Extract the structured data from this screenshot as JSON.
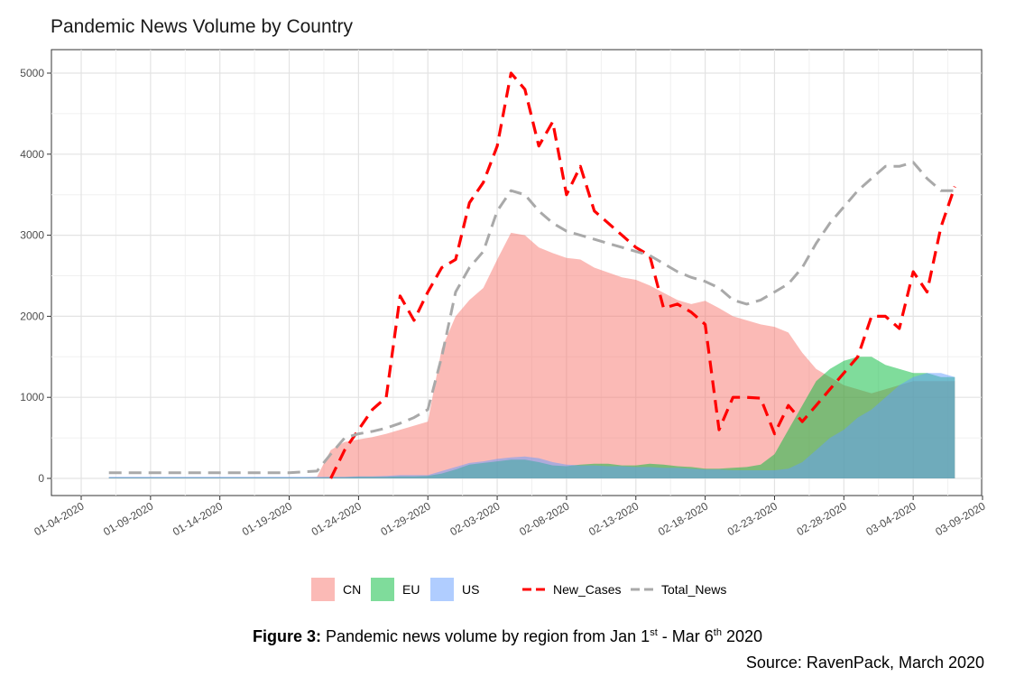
{
  "chart_data": {
    "type": "area",
    "title": "Pandemic News Volume by Country",
    "xlabel": "",
    "ylabel": "",
    "x_start": "2020-01-06",
    "x_step_days": 1,
    "x_ticks": [
      "01-04-2020",
      "01-09-2020",
      "01-14-2020",
      "01-19-2020",
      "01-24-2020",
      "01-29-2020",
      "02-03-2020",
      "02-08-2020",
      "02-13-2020",
      "02-18-2020",
      "02-23-2020",
      "02-28-2020",
      "03-04-2020",
      "03-09-2020"
    ],
    "y_ticks": [
      0,
      1000,
      2000,
      3000,
      4000,
      5000
    ],
    "ylim": [
      0,
      5000
    ],
    "grid": true,
    "legend_position": "bottom",
    "series": [
      {
        "name": "CN",
        "kind": "area",
        "color": "#F8766D",
        "values": [
          15,
          15,
          15,
          15,
          15,
          15,
          15,
          15,
          15,
          15,
          15,
          15,
          15,
          15,
          15,
          20,
          350,
          450,
          480,
          510,
          550,
          600,
          650,
          700,
          1600,
          2000,
          2200,
          2350,
          2700,
          3030,
          3000,
          2850,
          2780,
          2720,
          2700,
          2600,
          2540,
          2480,
          2450,
          2380,
          2290,
          2200,
          2150,
          2190,
          2100,
          2000,
          1950,
          1900,
          1870,
          1800,
          1550,
          1350,
          1250,
          1150,
          1100,
          1050,
          1100,
          1150,
          1200,
          1200,
          1200,
          1200
        ]
      },
      {
        "name": "EU",
        "kind": "area",
        "color": "#00BA38",
        "values": [
          10,
          10,
          10,
          10,
          10,
          10,
          10,
          10,
          10,
          10,
          10,
          10,
          10,
          10,
          10,
          10,
          15,
          15,
          20,
          20,
          20,
          25,
          25,
          30,
          60,
          110,
          170,
          190,
          210,
          230,
          230,
          200,
          160,
          150,
          170,
          180,
          180,
          160,
          160,
          180,
          170,
          150,
          140,
          120,
          120,
          130,
          140,
          170,
          300,
          600,
          900,
          1200,
          1350,
          1450,
          1500,
          1500,
          1400,
          1350,
          1300,
          1300,
          1250,
          1250
        ]
      },
      {
        "name": "US",
        "kind": "area",
        "color": "#619CFF",
        "values": [
          20,
          20,
          20,
          20,
          20,
          20,
          20,
          20,
          20,
          20,
          20,
          20,
          20,
          20,
          20,
          20,
          20,
          20,
          25,
          25,
          30,
          40,
          40,
          40,
          90,
          140,
          190,
          210,
          240,
          260,
          270,
          250,
          200,
          170,
          160,
          160,
          150,
          150,
          140,
          140,
          130,
          130,
          120,
          110,
          110,
          100,
          100,
          100,
          100,
          120,
          200,
          350,
          500,
          600,
          750,
          850,
          1000,
          1150,
          1250,
          1300,
          1300,
          1250
        ]
      },
      {
        "name": "New_Cases",
        "kind": "line",
        "color": "#FF0000",
        "values": [
          null,
          null,
          null,
          null,
          null,
          null,
          null,
          null,
          null,
          null,
          null,
          null,
          null,
          null,
          null,
          null,
          0,
          350,
          600,
          850,
          1000,
          2250,
          1950,
          2300,
          2600,
          2700,
          3400,
          3650,
          4100,
          5000,
          4800,
          4100,
          4400,
          3500,
          3850,
          3300,
          3150,
          3000,
          2850,
          2750,
          2100,
          2150,
          2050,
          1900,
          600,
          1000,
          1000,
          990,
          550,
          900,
          700,
          900,
          1100,
          1300,
          1500,
          2000,
          2000,
          1850,
          2550,
          2300,
          3100,
          3600
        ]
      },
      {
        "name": "Total_News",
        "kind": "line",
        "color": "#A9A9A9",
        "values": [
          70,
          70,
          70,
          70,
          70,
          70,
          70,
          70,
          70,
          70,
          70,
          70,
          70,
          70,
          80,
          90,
          300,
          500,
          550,
          580,
          620,
          680,
          750,
          850,
          1500,
          2300,
          2600,
          2800,
          3300,
          3550,
          3500,
          3300,
          3150,
          3050,
          3000,
          2950,
          2900,
          2850,
          2800,
          2750,
          2650,
          2550,
          2480,
          2430,
          2350,
          2200,
          2150,
          2200,
          2300,
          2400,
          2600,
          2900,
          3150,
          3350,
          3550,
          3700,
          3850,
          3850,
          3900,
          3700,
          3550,
          3550
        ]
      }
    ]
  },
  "caption": {
    "label": "Figure 3:",
    "text_main": " Pandemic news volume by region from Jan 1",
    "sup1": "st",
    "text_mid": " - Mar 6",
    "sup2": "th",
    "text_end": " 2020"
  },
  "source": "Source: RavenPack, March 2020"
}
